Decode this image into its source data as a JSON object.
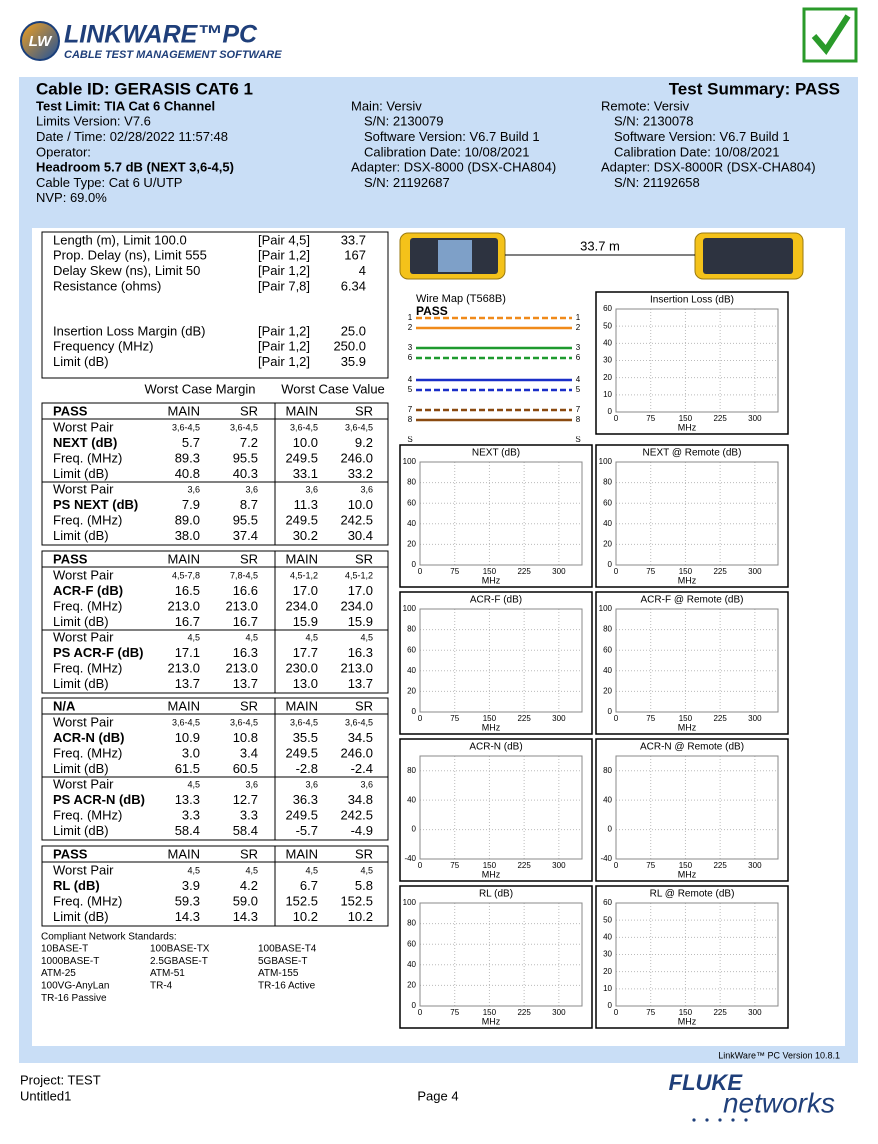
{
  "header": {
    "logo_mark": "LW",
    "product": "LINKWARE™PC",
    "subtitle": "CABLE TEST MANAGEMENT SOFTWARE"
  },
  "summary": {
    "cable_id": "Cable ID: GERASIS CAT6 1",
    "result": "Test Summary: PASS",
    "test_info": [
      "Test Limit: TIA Cat 6 Channel",
      "Limits Version: V7.6",
      "Date / Time: 02/28/2022  11:57:48",
      "Operator:",
      "Headroom 5.7 dB (NEXT 3,6-4,5)",
      "Cable Type: Cat 6 U/UTP",
      "NVP: 69.0%"
    ],
    "main": [
      "Main: Versiv",
      "S/N: 2130079",
      "Software Version: V6.7 Build 1",
      "Calibration Date: 10/08/2021",
      "Adapter: DSX-8000 (DSX-CHA804)",
      "S/N: 21192687"
    ],
    "remote": [
      "Remote: Versiv",
      "S/N: 2130078",
      "Software Version: V6.7 Build 1",
      "Calibration Date: 10/08/2021",
      "Adapter: DSX-8000R (DSX-CHA804)",
      "S/N: 21192658"
    ]
  },
  "measurements": {
    "cable_length_label": "33.7 m",
    "rows": [
      [
        "Length (m), Limit 100.0",
        "[Pair 4,5]",
        "33.7"
      ],
      [
        "Prop. Delay (ns), Limit 555",
        "[Pair 1,2]",
        "167"
      ],
      [
        "Delay Skew (ns), Limit 50",
        "[Pair 1,2]",
        "4"
      ],
      [
        "Resistance (ohms)",
        "[Pair 7,8]",
        "6.34"
      ],
      [
        "Insertion Loss Margin (dB)",
        "[Pair 1,2]",
        "25.0"
      ],
      [
        "Frequency (MHz)",
        "[Pair 1,2]",
        "250.0"
      ],
      [
        "Limit (dB)",
        "[Pair 1,2]",
        "35.9"
      ]
    ]
  },
  "table_headings": [
    "Worst Case Margin",
    "Worst Case Value"
  ],
  "tables": [
    {
      "header": [
        "PASS",
        "MAIN",
        "SR",
        "MAIN",
        "SR"
      ],
      "rows": [
        [
          "Worst Pair",
          "3,6-4,5",
          "3,6-4,5",
          "3,6-4,5",
          "3,6-4,5"
        ],
        [
          "NEXT (dB)",
          "5.7",
          "7.2",
          "10.0",
          "9.2"
        ],
        [
          "Freq. (MHz)",
          "89.3",
          "95.5",
          "249.5",
          "246.0"
        ],
        [
          "Limit (dB)",
          "40.8",
          "40.3",
          "33.1",
          "33.2"
        ],
        [
          "Worst Pair",
          "3,6",
          "3,6",
          "3,6",
          "3,6"
        ],
        [
          "PS NEXT (dB)",
          "7.9",
          "8.7",
          "11.3",
          "10.0"
        ],
        [
          "Freq. (MHz)",
          "89.0",
          "95.5",
          "249.5",
          "242.5"
        ],
        [
          "Limit (dB)",
          "38.0",
          "37.4",
          "30.2",
          "30.4"
        ]
      ]
    },
    {
      "header": [
        "PASS",
        "MAIN",
        "SR",
        "MAIN",
        "SR"
      ],
      "rows": [
        [
          "Worst Pair",
          "4,5-7,8",
          "7,8-4,5",
          "4,5-1,2",
          "4,5-1,2"
        ],
        [
          "ACR-F (dB)",
          "16.5",
          "16.6",
          "17.0",
          "17.0"
        ],
        [
          "Freq. (MHz)",
          "213.0",
          "213.0",
          "234.0",
          "234.0"
        ],
        [
          "Limit (dB)",
          "16.7",
          "16.7",
          "15.9",
          "15.9"
        ],
        [
          "Worst Pair",
          "4,5",
          "4,5",
          "4,5",
          "4,5"
        ],
        [
          "PS ACR-F (dB)",
          "17.1",
          "16.3",
          "17.7",
          "16.3"
        ],
        [
          "Freq. (MHz)",
          "213.0",
          "213.0",
          "230.0",
          "213.0"
        ],
        [
          "Limit (dB)",
          "13.7",
          "13.7",
          "13.0",
          "13.7"
        ]
      ]
    },
    {
      "header": [
        "N/A",
        "MAIN",
        "SR",
        "MAIN",
        "SR"
      ],
      "rows": [
        [
          "Worst Pair",
          "3,6-4,5",
          "3,6-4,5",
          "3,6-4,5",
          "3,6-4,5"
        ],
        [
          "ACR-N (dB)",
          "10.9",
          "10.8",
          "35.5",
          "34.5"
        ],
        [
          "Freq. (MHz)",
          "3.0",
          "3.4",
          "249.5",
          "246.0"
        ],
        [
          "Limit (dB)",
          "61.5",
          "60.5",
          "-2.8",
          "-2.4"
        ],
        [
          "Worst Pair",
          "4,5",
          "3,6",
          "3,6",
          "3,6"
        ],
        [
          "PS ACR-N (dB)",
          "13.3",
          "12.7",
          "36.3",
          "34.8"
        ],
        [
          "Freq. (MHz)",
          "3.3",
          "3.3",
          "249.5",
          "242.5"
        ],
        [
          "Limit (dB)",
          "58.4",
          "58.4",
          "-5.7",
          "-4.9"
        ]
      ]
    },
    {
      "header": [
        "PASS",
        "MAIN",
        "SR",
        "MAIN",
        "SR"
      ],
      "rows": [
        [
          "Worst Pair",
          "4,5",
          "4,5",
          "4,5",
          "4,5"
        ],
        [
          "RL (dB)",
          "3.9",
          "4.2",
          "6.7",
          "5.8"
        ],
        [
          "Freq. (MHz)",
          "59.3",
          "59.0",
          "152.5",
          "152.5"
        ],
        [
          "Limit (dB)",
          "14.3",
          "14.3",
          "10.2",
          "10.2"
        ]
      ]
    }
  ],
  "standards": {
    "title": "Compliant Network Standards:",
    "items": [
      "10BASE-T",
      "100BASE-TX",
      "100BASE-T4",
      "1000BASE-T",
      "2.5GBASE-T",
      "5GBASE-T",
      "ATM-25",
      "ATM-51",
      "ATM-155",
      "100VG-AnyLan",
      "TR-4",
      "TR-16 Active",
      "TR-16 Passive"
    ]
  },
  "wire_map": {
    "title": "Wire Map (T568B)",
    "result": "PASS",
    "pins": [
      "1",
      "2",
      "3",
      "6",
      "4",
      "5",
      "7",
      "8"
    ],
    "shield": "S"
  },
  "plots": [
    {
      "title": "Insertion Loss (dB)",
      "xlabel": "MHz",
      "xlim": [
        0,
        350
      ],
      "ylim": [
        0,
        60
      ],
      "xticks": [
        0,
        75,
        150,
        225,
        300
      ],
      "yticks": [
        0,
        10,
        20,
        30,
        40,
        50,
        60
      ]
    },
    {
      "title": "NEXT (dB)",
      "xlabel": "MHz",
      "xlim": [
        0,
        350
      ],
      "ylim": [
        0,
        100
      ],
      "xticks": [
        0,
        75,
        150,
        225,
        300
      ],
      "yticks": [
        0,
        20,
        40,
        60,
        80,
        100
      ]
    },
    {
      "title": "NEXT @ Remote (dB)",
      "xlabel": "MHz",
      "xlim": [
        0,
        350
      ],
      "ylim": [
        0,
        100
      ],
      "xticks": [
        0,
        75,
        150,
        225,
        300
      ],
      "yticks": [
        0,
        20,
        40,
        60,
        80,
        100
      ]
    },
    {
      "title": "ACR-F (dB)",
      "xlabel": "MHz",
      "xlim": [
        0,
        350
      ],
      "ylim": [
        0,
        100
      ],
      "xticks": [
        0,
        75,
        150,
        225,
        300
      ],
      "yticks": [
        0,
        20,
        40,
        60,
        80,
        100
      ]
    },
    {
      "title": "ACR-F @ Remote (dB)",
      "xlabel": "MHz",
      "xlim": [
        0,
        350
      ],
      "ylim": [
        0,
        100
      ],
      "xticks": [
        0,
        75,
        150,
        225,
        300
      ],
      "yticks": [
        0,
        20,
        40,
        60,
        80,
        100
      ]
    },
    {
      "title": "ACR-N (dB)",
      "xlabel": "MHz",
      "xlim": [
        0,
        350
      ],
      "ylim": [
        -40,
        100
      ],
      "xticks": [
        0,
        75,
        150,
        225,
        300
      ],
      "yticks": [
        -40,
        0,
        40,
        80
      ]
    },
    {
      "title": "ACR-N @ Remote (dB)",
      "xlabel": "MHz",
      "xlim": [
        0,
        350
      ],
      "ylim": [
        -40,
        100
      ],
      "xticks": [
        0,
        75,
        150,
        225,
        300
      ],
      "yticks": [
        -40,
        0,
        40,
        80
      ]
    },
    {
      "title": "RL (dB)",
      "xlabel": "MHz",
      "xlim": [
        0,
        350
      ],
      "ylim": [
        0,
        100
      ],
      "xticks": [
        0,
        75,
        150,
        225,
        300
      ],
      "yticks": [
        0,
        20,
        40,
        60,
        80,
        100
      ]
    },
    {
      "title": "RL @ Remote (dB)",
      "xlabel": "MHz",
      "xlim": [
        0,
        350
      ],
      "ylim": [
        0,
        60
      ],
      "xticks": [
        0,
        75,
        150,
        225,
        300
      ],
      "yticks": [
        0,
        10,
        20,
        30,
        40,
        50,
        60
      ]
    }
  ],
  "footer": {
    "version": "LinkWare™ PC Version 10.8.1",
    "project": "Project: TEST",
    "file": "Untitled1",
    "page": "Page 4",
    "brand": "FLUKE",
    "brand2": "networks"
  }
}
